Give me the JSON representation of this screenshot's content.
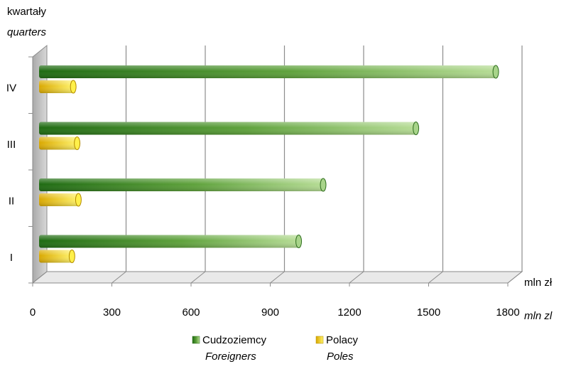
{
  "chart_data": {
    "type": "bar",
    "orientation": "horizontal",
    "style": "3d-cylinder",
    "ylabel": {
      "primary": "kwartały",
      "secondary": "quarters"
    },
    "xlabel": {
      "primary": "mln zł",
      "secondary": "mln zl"
    },
    "categories": [
      "I",
      "II",
      "III",
      "IV"
    ],
    "xticks": [
      "0",
      "300",
      "600",
      "900",
      "1200",
      "1500",
      "1800"
    ],
    "xlim": [
      0,
      1800
    ],
    "grid": true,
    "legend_position": "bottom",
    "series": [
      {
        "name": "Cudzoziemcy",
        "name_secondary": "Foreigners",
        "color": "#3d8a25",
        "color_light": "#a8d48a",
        "values": [
          1005,
          1100,
          1460,
          1770
        ]
      },
      {
        "name": "Polacy",
        "name_secondary": "Poles",
        "color": "#e6c200",
        "color_light": "#fff04a",
        "values": [
          125,
          150,
          145,
          130
        ]
      }
    ]
  }
}
